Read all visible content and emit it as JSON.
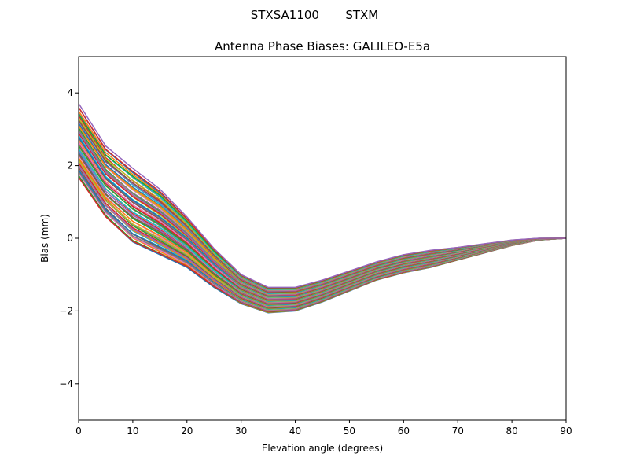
{
  "chart_data": {
    "type": "line",
    "suptitle": "STXSA1100       STXM",
    "title": "Antenna Phase Biases: GALILEO-E5a",
    "xlabel": "Elevation angle (degrees)",
    "ylabel": "Bias (mm)",
    "xlim": [
      0,
      90
    ],
    "ylim": [
      -5,
      5
    ],
    "xticks": [
      0,
      10,
      20,
      30,
      40,
      50,
      60,
      70,
      80,
      90
    ],
    "yticks": [
      -4,
      -2,
      0,
      2,
      4
    ],
    "ytick_labels": [
      "−4",
      "−2",
      "0",
      "2",
      "4"
    ],
    "grid": false,
    "legend": "none",
    "colors": [
      "#1f77b4",
      "#ff7f0e",
      "#2ca02c",
      "#d62728",
      "#9467bd",
      "#8c564b",
      "#e377c2",
      "#7f7f7f",
      "#bcbd22",
      "#17becf"
    ],
    "x": [
      0,
      5,
      10,
      15,
      20,
      25,
      30,
      35,
      40,
      45,
      50,
      55,
      60,
      65,
      70,
      75,
      80,
      85,
      90
    ],
    "series": [
      {
        "values": [
          1.7,
          0.6,
          -0.1,
          -0.45,
          -0.8,
          -1.35,
          -1.8,
          -2.05,
          -2.0,
          -1.75,
          -1.45,
          -1.15,
          -0.95,
          -0.8,
          -0.6,
          -0.4,
          -0.2,
          -0.05,
          0
        ]
      },
      {
        "values": [
          1.94,
          0.83,
          0.14,
          -0.23,
          -0.63,
          -1.22,
          -1.7,
          -1.96,
          -1.92,
          -1.68,
          -1.38,
          -1.09,
          -0.89,
          -0.74,
          -0.56,
          -0.37,
          -0.18,
          -0.04,
          0
        ]
      },
      {
        "values": [
          2.18,
          1.06,
          0.39,
          -0.01,
          -0.46,
          -1.09,
          -1.6,
          -1.88,
          -1.84,
          -1.6,
          -1.31,
          -1.03,
          -0.83,
          -0.68,
          -0.51,
          -0.34,
          -0.16,
          -0.04,
          0
        ]
      },
      {
        "values": [
          2.41,
          1.29,
          0.63,
          0.21,
          -0.29,
          -0.96,
          -1.5,
          -1.79,
          -1.76,
          -1.53,
          -1.24,
          -0.96,
          -0.76,
          -0.62,
          -0.47,
          -0.31,
          -0.14,
          -0.03,
          0
        ]
      },
      {
        "values": [
          2.65,
          1.53,
          0.88,
          0.43,
          -0.13,
          -0.83,
          -1.4,
          -1.7,
          -1.68,
          -1.45,
          -1.18,
          -0.9,
          -0.7,
          -0.57,
          -0.43,
          -0.28,
          -0.13,
          -0.03,
          0
        ]
      },
      {
        "values": [
          2.89,
          1.76,
          1.12,
          0.64,
          0.04,
          -0.69,
          -1.3,
          -1.61,
          -1.59,
          -1.38,
          -1.11,
          -0.84,
          -0.64,
          -0.51,
          -0.38,
          -0.24,
          -0.11,
          -0.02,
          0
        ]
      },
      {
        "values": [
          3.13,
          1.99,
          1.36,
          0.86,
          0.21,
          -0.56,
          -1.2,
          -1.53,
          -1.51,
          -1.3,
          -1.04,
          -0.78,
          -0.58,
          -0.45,
          -0.34,
          -0.21,
          -0.09,
          -0.01,
          0
        ]
      },
      {
        "values": [
          3.36,
          2.22,
          1.61,
          1.08,
          0.38,
          -0.43,
          -1.1,
          -1.44,
          -1.43,
          -1.23,
          -0.97,
          -0.71,
          -0.51,
          -0.39,
          -0.29,
          -0.18,
          -0.07,
          -0.01,
          0
        ]
      },
      {
        "values": [
          3.6,
          2.45,
          1.85,
          1.3,
          0.55,
          -0.3,
          -1.0,
          -1.35,
          -1.35,
          -1.15,
          -0.9,
          -0.65,
          -0.45,
          -0.33,
          -0.25,
          -0.15,
          -0.05,
          0,
          0
        ]
      }
    ]
  }
}
